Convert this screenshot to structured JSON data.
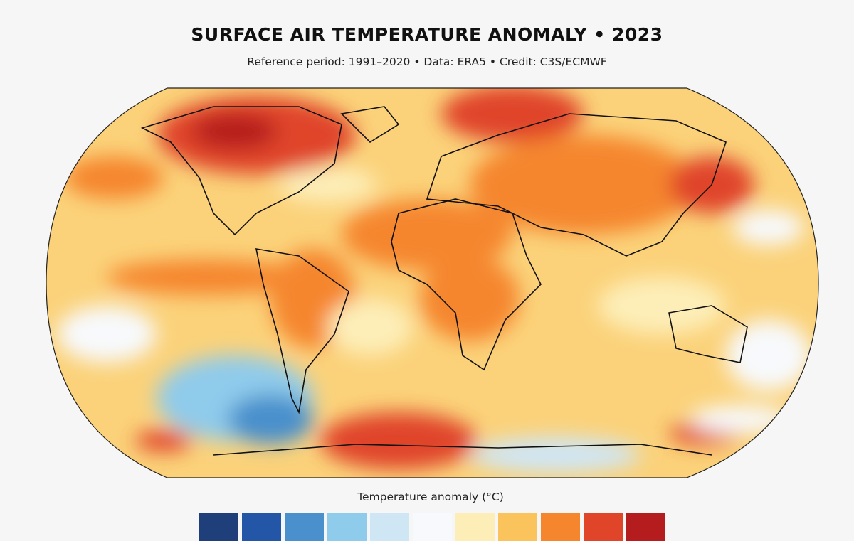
{
  "header": {
    "title": "SURFACE AIR TEMPERATURE ANOMALY • 2023",
    "subtitle": "Reference period: 1991–2020 • Data: ERA5 • Credit: C3S/ECMWF"
  },
  "map": {
    "projection": "Robinson (global)",
    "variable": "surface air temperature anomaly",
    "year": "2023"
  },
  "legend": {
    "title": "Temperature anomaly (°C)",
    "colors": [
      "#1f3f7a",
      "#2356a6",
      "#4a90cc",
      "#8fcbeb",
      "#cfe6f5",
      "#f7f9fc",
      "#fdeeb8",
      "#fbc35c",
      "#f5862e",
      "#e0452a",
      "#b51c1e"
    ]
  }
}
